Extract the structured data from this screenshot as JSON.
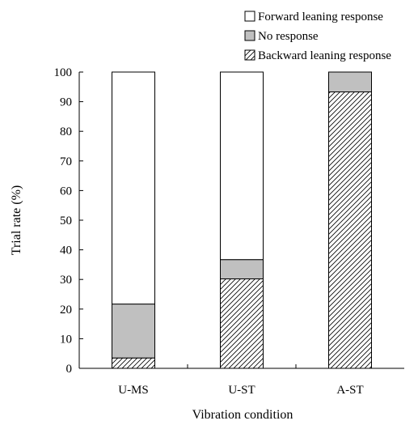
{
  "chart_data": {
    "type": "bar",
    "stacked": true,
    "title": "",
    "xlabel": "Vibration condition",
    "ylabel": "Trial rate (%)",
    "ylim": [
      0,
      100
    ],
    "yticks": [
      0,
      10,
      20,
      30,
      40,
      50,
      60,
      70,
      80,
      90,
      100
    ],
    "grid": false,
    "legend_position": "top-right",
    "categories": [
      "U-MS",
      "U-ST",
      "A-ST"
    ],
    "series": [
      {
        "name": "Backward leaning response",
        "values": [
          3.5,
          30.2,
          93.3
        ],
        "fill": "hatch"
      },
      {
        "name": "No response",
        "values": [
          18.2,
          6.5,
          6.7
        ],
        "fill": "#c0c0c0"
      },
      {
        "name": "Forward leaning response",
        "values": [
          78.3,
          63.3,
          0
        ],
        "fill": "#ffffff"
      }
    ],
    "legend_order": [
      "Forward leaning response",
      "No response",
      "Backward leaning response"
    ]
  }
}
